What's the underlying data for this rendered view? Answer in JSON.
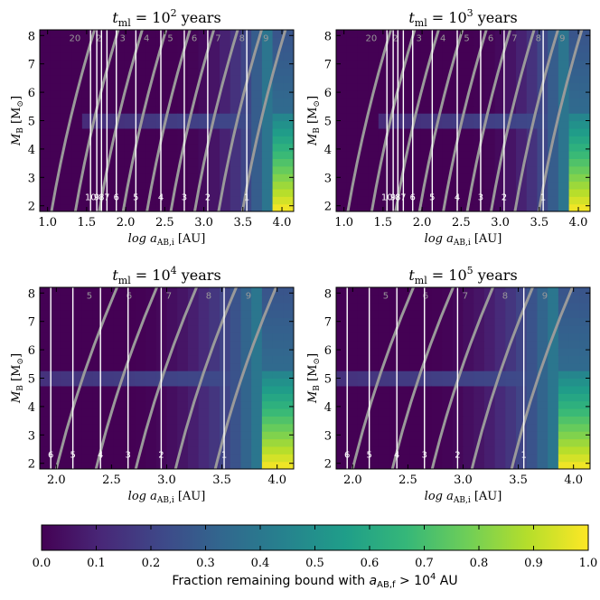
{
  "figure": {
    "colorbar": {
      "range": [
        0.0,
        1.0
      ],
      "ticks": [
        "0.0",
        "0.1",
        "0.2",
        "0.3",
        "0.4",
        "0.5",
        "0.6",
        "0.7",
        "0.8",
        "0.9",
        "1.0"
      ],
      "label_prefix": "Fraction remaining bound with ",
      "label_math_main": "a",
      "label_math_sub": "AB,f",
      "label_math_cmp": " > 10",
      "label_math_exp": "4",
      "label_suffix": " AU",
      "colormap": "viridis",
      "colors": [
        "#440154",
        "#482878",
        "#3e4989",
        "#31688e",
        "#26828e",
        "#1f9e89",
        "#35b779",
        "#6ece58",
        "#b5de2b",
        "#fde725"
      ]
    },
    "shared": {
      "ylabel_main": "M",
      "ylabel_sub": "B",
      "ylabel_unit": "[M",
      "ylabel_unit_sub": "⊙",
      "ylabel_close": "]",
      "xlabel_main": "log a",
      "xlabel_sub": "AB,i",
      "xlabel_unit": "[AU]",
      "title_t": "t",
      "title_sub": "ml",
      "title_eq": " = 10",
      "title_years": " years",
      "yticks": [
        "2",
        "3",
        "4",
        "5",
        "6",
        "7",
        "8"
      ]
    }
  },
  "chart_data": [
    {
      "type": "heatmap",
      "title_exponent": "2",
      "xlim": [
        0.9,
        4.15
      ],
      "ylim": [
        1.8,
        8.2
      ],
      "xticks": [
        "1.0",
        "1.5",
        "2.0",
        "2.5",
        "3.0",
        "3.5",
        "4.0"
      ],
      "xtick_values": [
        1.0,
        1.5,
        2.0,
        2.5,
        3.0,
        3.5,
        4.0
      ],
      "white_contours": [
        {
          "x": 1.63,
          "label": "9"
        },
        {
          "x": 1.69,
          "label": "8"
        },
        {
          "x": 1.76,
          "label": "7"
        },
        {
          "x": 1.88,
          "label": "6"
        },
        {
          "x": 2.13,
          "label": "5"
        },
        {
          "x": 2.45,
          "label": "4"
        },
        {
          "x": 2.75,
          "label": "3"
        },
        {
          "x": 3.05,
          "label": "2"
        },
        {
          "x": 3.55,
          "label": "1"
        },
        {
          "x": 1.55,
          "label": "10"
        }
      ],
      "gray_contours": [
        "20",
        "2",
        "3",
        "4",
        "5",
        "6",
        "7",
        "8",
        "9"
      ],
      "peak_fraction": 1.0
    },
    {
      "type": "heatmap",
      "title_exponent": "3",
      "xlim": [
        0.9,
        4.15
      ],
      "ylim": [
        1.8,
        8.2
      ],
      "xticks": [
        "1.0",
        "1.5",
        "2.0",
        "2.5",
        "3.0",
        "3.5",
        "4.0"
      ],
      "xtick_values": [
        1.0,
        1.5,
        2.0,
        2.5,
        3.0,
        3.5,
        4.0
      ],
      "white_contours": [
        {
          "x": 1.63,
          "label": "9"
        },
        {
          "x": 1.69,
          "label": "8"
        },
        {
          "x": 1.76,
          "label": "7"
        },
        {
          "x": 1.88,
          "label": "6"
        },
        {
          "x": 2.13,
          "label": "5"
        },
        {
          "x": 2.45,
          "label": "4"
        },
        {
          "x": 2.75,
          "label": "3"
        },
        {
          "x": 3.05,
          "label": "2"
        },
        {
          "x": 3.55,
          "label": "1"
        },
        {
          "x": 1.55,
          "label": "10"
        }
      ],
      "gray_contours": [
        "20",
        "2",
        "3",
        "4",
        "5",
        "6",
        "7",
        "8",
        "9"
      ],
      "peak_fraction": 1.0
    },
    {
      "type": "heatmap",
      "title_exponent": "4",
      "xlim": [
        1.85,
        4.15
      ],
      "ylim": [
        1.8,
        8.2
      ],
      "xticks": [
        "2.0",
        "2.5",
        "3.0",
        "3.5",
        "4.0"
      ],
      "xtick_values": [
        2.0,
        2.5,
        3.0,
        3.5,
        4.0
      ],
      "white_contours": [
        {
          "x": 1.95,
          "label": "6"
        },
        {
          "x": 2.15,
          "label": "5"
        },
        {
          "x": 2.4,
          "label": "4"
        },
        {
          "x": 2.65,
          "label": "3"
        },
        {
          "x": 2.95,
          "label": "2"
        },
        {
          "x": 3.52,
          "label": "1"
        }
      ],
      "gray_contours": [
        "5",
        "6",
        "7",
        "8",
        "9"
      ],
      "peak_fraction": 1.0
    },
    {
      "type": "heatmap",
      "title_exponent": "5",
      "xlim": [
        1.85,
        4.15
      ],
      "ylim": [
        1.8,
        8.2
      ],
      "xticks": [
        "2.0",
        "2.5",
        "3.0",
        "3.5",
        "4.0"
      ],
      "xtick_values": [
        2.0,
        2.5,
        3.0,
        3.5,
        4.0
      ],
      "white_contours": [
        {
          "x": 1.95,
          "label": "6"
        },
        {
          "x": 2.15,
          "label": "5"
        },
        {
          "x": 2.4,
          "label": "4"
        },
        {
          "x": 2.65,
          "label": "3"
        },
        {
          "x": 2.95,
          "label": "2"
        },
        {
          "x": 3.55,
          "label": "1"
        }
      ],
      "gray_contours": [
        "5",
        "6",
        "7",
        "8",
        "9"
      ],
      "peak_fraction": 1.0
    }
  ]
}
